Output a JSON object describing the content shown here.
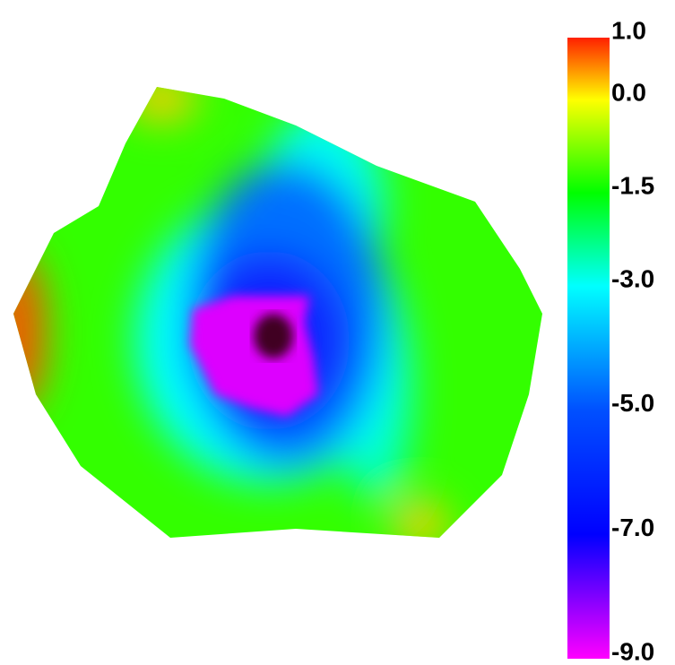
{
  "chart_data": {
    "type": "colorfield",
    "clim": [
      -9,
      1
    ],
    "colorscale": [
      [
        1,
        "#ff2000"
      ],
      [
        0,
        "#ffff00"
      ],
      [
        -1.5,
        "#00ff00"
      ],
      [
        -3,
        "#00ffff"
      ],
      [
        -5,
        "#0050ff"
      ],
      [
        -7,
        "#0000ff"
      ],
      [
        -9,
        "#ff00ff"
      ]
    ],
    "cticks": [
      {
        "value": 1,
        "label": "1.0"
      },
      {
        "value": 0,
        "label": "0.0"
      },
      -1.5,
      {
        "value": -3,
        "label": "-3.0"
      },
      {
        "value": -5,
        "label": "-5.0"
      },
      {
        "value": -7,
        "label": "-7.0"
      },
      {
        "value": -9,
        "label": "-9.0"
      }
    ]
  }
}
